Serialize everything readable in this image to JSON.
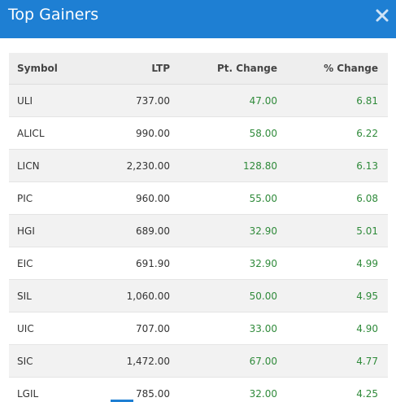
{
  "modal": {
    "title": "Top Gainers",
    "close_icon": "close-icon"
  },
  "table": {
    "headers": [
      "Symbol",
      "LTP",
      "Pt. Change",
      "% Change"
    ],
    "rows": [
      [
        "ULI",
        "737.00",
        "47.00",
        "6.81"
      ],
      [
        "ALICL",
        "990.00",
        "58.00",
        "6.22"
      ],
      [
        "LICN",
        "2,230.00",
        "128.80",
        "6.13"
      ],
      [
        "PIC",
        "960.00",
        "55.00",
        "6.08"
      ],
      [
        "HGI",
        "689.00",
        "32.90",
        "5.01"
      ],
      [
        "EIC",
        "691.90",
        "32.90",
        "4.99"
      ],
      [
        "SIL",
        "1,060.00",
        "50.00",
        "4.95"
      ],
      [
        "UIC",
        "707.00",
        "33.00",
        "4.90"
      ],
      [
        "SIC",
        "1,472.00",
        "67.00",
        "4.77"
      ],
      [
        "LGIL",
        "785.00",
        "32.00",
        "4.25"
      ]
    ]
  },
  "colors": {
    "header_bg": "#1e7fd3",
    "positive": "#2f8a3a"
  }
}
